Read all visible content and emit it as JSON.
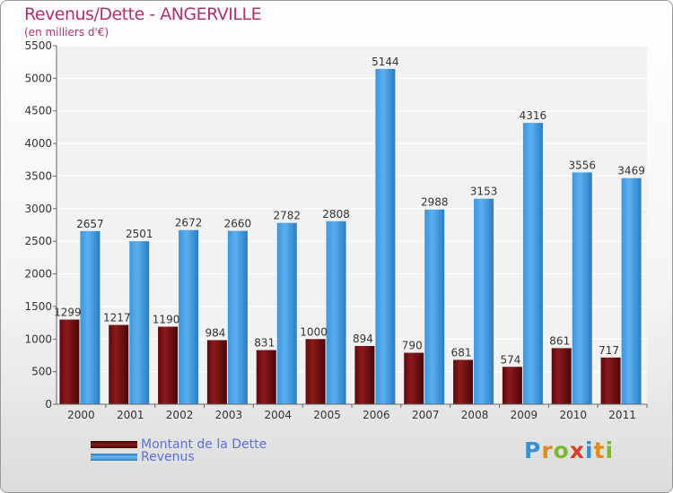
{
  "chart_data": {
    "type": "bar",
    "title": "Revenus/Dette - ANGERVILLE",
    "subtitle": "(en milliers d'€)",
    "categories": [
      "2000",
      "2001",
      "2002",
      "2003",
      "2004",
      "2005",
      "2006",
      "2007",
      "2008",
      "2009",
      "2010",
      "2011"
    ],
    "series": [
      {
        "name": "Montant de la Dette",
        "color": "#7a1416",
        "values": [
          1299,
          1217,
          1190,
          984,
          831,
          1000,
          894,
          790,
          681,
          574,
          861,
          717
        ],
        "labels": [
          "1299",
          "1217",
          "1190",
          "984",
          "831",
          "1000",
          "894",
          "790",
          "681",
          "574",
          "861",
          "717"
        ]
      },
      {
        "name": "Revenus",
        "color": "#4aa3e6",
        "values": [
          2657,
          2501,
          2672,
          2660,
          2782,
          2808,
          5144,
          2988,
          3153,
          4316,
          3556,
          3469
        ],
        "labels": [
          "2657",
          "2501",
          "2672",
          "2660",
          "2782",
          "2808",
          "5144",
          "2988",
          "3153",
          "4316",
          "3556",
          "3469"
        ]
      }
    ],
    "yticks": [
      "0",
      "500",
      "1000",
      "1500",
      "2000",
      "2500",
      "3000",
      "3500",
      "4000",
      "4500",
      "5000",
      "5500"
    ],
    "ylim": [
      0,
      5500
    ],
    "grid": true,
    "legend": "bottom-left"
  },
  "logo": {
    "text": "Proxiti"
  }
}
